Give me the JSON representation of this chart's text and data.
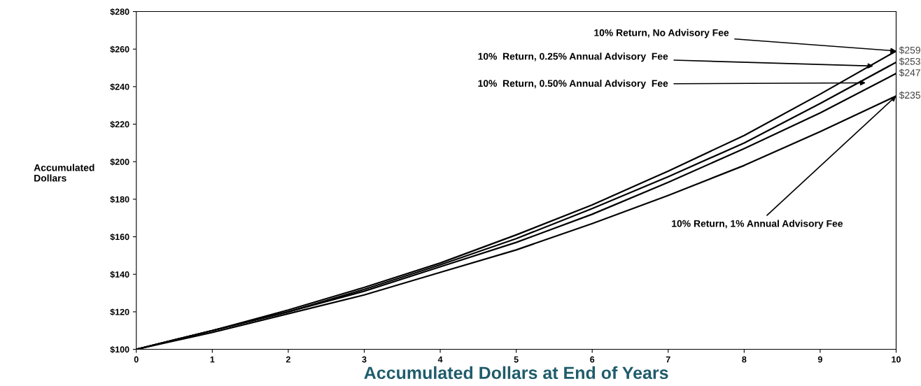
{
  "chart_data": {
    "type": "line",
    "xlabel": "Accumulated Dollars at End of Years",
    "ylabel": "Accumulated\nDollars",
    "x": [
      0,
      1,
      2,
      3,
      4,
      5,
      6,
      7,
      8,
      9,
      10
    ],
    "series": [
      {
        "color": "#000000",
        "values": [
          100,
          110,
          121,
          133,
          146,
          161,
          177,
          195,
          214,
          236,
          259
        ],
        "value_labels": [
          null,
          null,
          null,
          null,
          null,
          null,
          null,
          null,
          null,
          null,
          "$259"
        ]
      },
      {
        "color": "#000000",
        "values": [
          100,
          110,
          120,
          132,
          145,
          159,
          175,
          192,
          210,
          231,
          253
        ],
        "value_labels": [
          null,
          null,
          null,
          null,
          null,
          null,
          null,
          null,
          null,
          null,
          "$253"
        ]
      },
      {
        "color": "#000000",
        "values": [
          100,
          110,
          120,
          131,
          144,
          157,
          172,
          189,
          207,
          226,
          247
        ],
        "value_labels": [
          null,
          null,
          null,
          null,
          null,
          null,
          null,
          null,
          null,
          null,
          "$247"
        ]
      },
      {
        "color": "#000000",
        "values": [
          100,
          109,
          119,
          129,
          141,
          153,
          167,
          182,
          198,
          216,
          235
        ],
        "value_labels": [
          null,
          null,
          null,
          null,
          null,
          null,
          null,
          null,
          null,
          null,
          "$235"
        ]
      }
    ],
    "annotations": [
      {
        "text": "10% Return, No Advisory Fee",
        "x": 10,
        "y": 259
      },
      {
        "text": "10%  Return, 0.25% Annual Advisory  Fee",
        "x": 9.7,
        "y": 251
      },
      {
        "text": "10%  Return, 0.50% Annual Advisory  Fee",
        "x": 9.6,
        "y": 242
      },
      {
        "text": "10% Return, 1% Annual Advisory Fee",
        "x": 10,
        "y": 235
      }
    ],
    "xlim": [
      0,
      10
    ],
    "xticks": [
      0,
      1,
      2,
      3,
      4,
      5,
      6,
      7,
      8,
      9,
      10
    ],
    "ylim": [
      100,
      280
    ],
    "yticks": [
      {
        "value": 100,
        "label": "$100"
      },
      {
        "value": 120,
        "label": "$120"
      },
      {
        "value": 140,
        "label": "$140"
      },
      {
        "value": 160,
        "label": "$160"
      },
      {
        "value": 180,
        "label": "$180"
      },
      {
        "value": 200,
        "label": "$200"
      },
      {
        "value": 220,
        "label": "$220"
      },
      {
        "value": 240,
        "label": "$240"
      },
      {
        "value": 260,
        "label": "$260"
      },
      {
        "value": 280,
        "label": "$280"
      }
    ],
    "grid": false,
    "legend": false,
    "marker": "none",
    "line_style": "solid"
  }
}
